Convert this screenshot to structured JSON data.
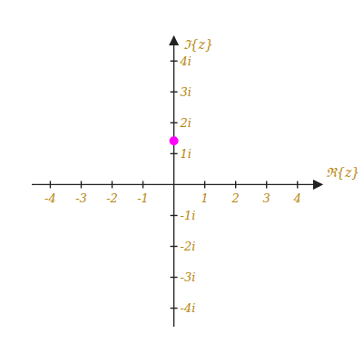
{
  "chart_data": {
    "type": "scatter",
    "x_label": "ℜ{z}",
    "y_label": "ℑ{z}",
    "x": [
      0
    ],
    "values": [
      1.4142135623730951
    ],
    "color": "#ff00ff",
    "xlim": [
      -4.6,
      4.8
    ],
    "ylim": [
      -4.6,
      4.8
    ],
    "xticks": [
      -4,
      -3,
      -2,
      -1,
      1,
      2,
      3,
      4
    ],
    "yticks": [
      {
        "value": -4,
        "label": "-4i"
      },
      {
        "value": -3,
        "label": "-3i"
      },
      {
        "value": -2,
        "label": "-2i"
      },
      {
        "value": -1,
        "label": "-1i"
      },
      {
        "value": 1,
        "label": "1i"
      },
      {
        "value": 2,
        "label": "2i"
      },
      {
        "value": 3,
        "label": "3i"
      },
      {
        "value": 4,
        "label": "4i"
      }
    ],
    "grid": false
  }
}
